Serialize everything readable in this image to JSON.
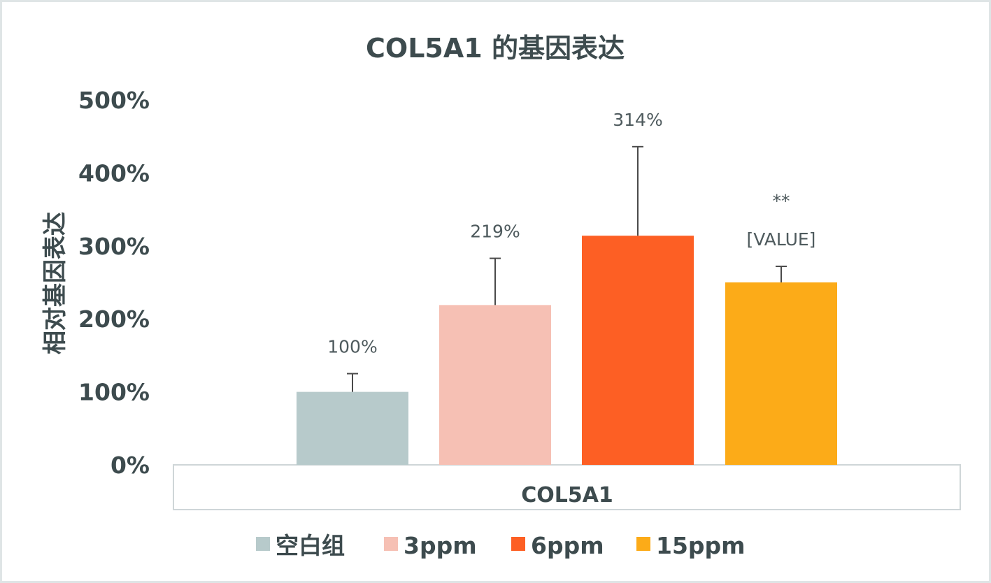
{
  "chart_data": {
    "type": "bar",
    "title": "COL5A1 的基因表达",
    "ylabel": "相对基因表达",
    "xlabel": "",
    "categories": [
      "COL5A1"
    ],
    "ylim": [
      0,
      5
    ],
    "yticks": [
      {
        "value": 0,
        "label": "0%"
      },
      {
        "value": 1,
        "label": "100%"
      },
      {
        "value": 2,
        "label": "200%"
      },
      {
        "value": 3,
        "label": "300%"
      },
      {
        "value": 4,
        "label": "400%"
      },
      {
        "value": 5,
        "label": "500%"
      }
    ],
    "grid": false,
    "legend_position": "bottom",
    "series": [
      {
        "name": "空白组",
        "value": 1.0,
        "error": 0.25,
        "label": "100%",
        "significance": "",
        "color": "#b7cacb"
      },
      {
        "name": "3ppm",
        "value": 2.19,
        "error": 0.64,
        "label": "219%",
        "significance": "",
        "color": "#f6c0b4"
      },
      {
        "name": "6ppm",
        "value": 3.14,
        "error": 1.22,
        "label": "314%",
        "significance": "",
        "color": "#fd5f24"
      },
      {
        "name": "15ppm",
        "value": 2.5,
        "error": 0.22,
        "label": "[VALUE]",
        "significance": "**",
        "color": "#fcab18"
      }
    ]
  }
}
